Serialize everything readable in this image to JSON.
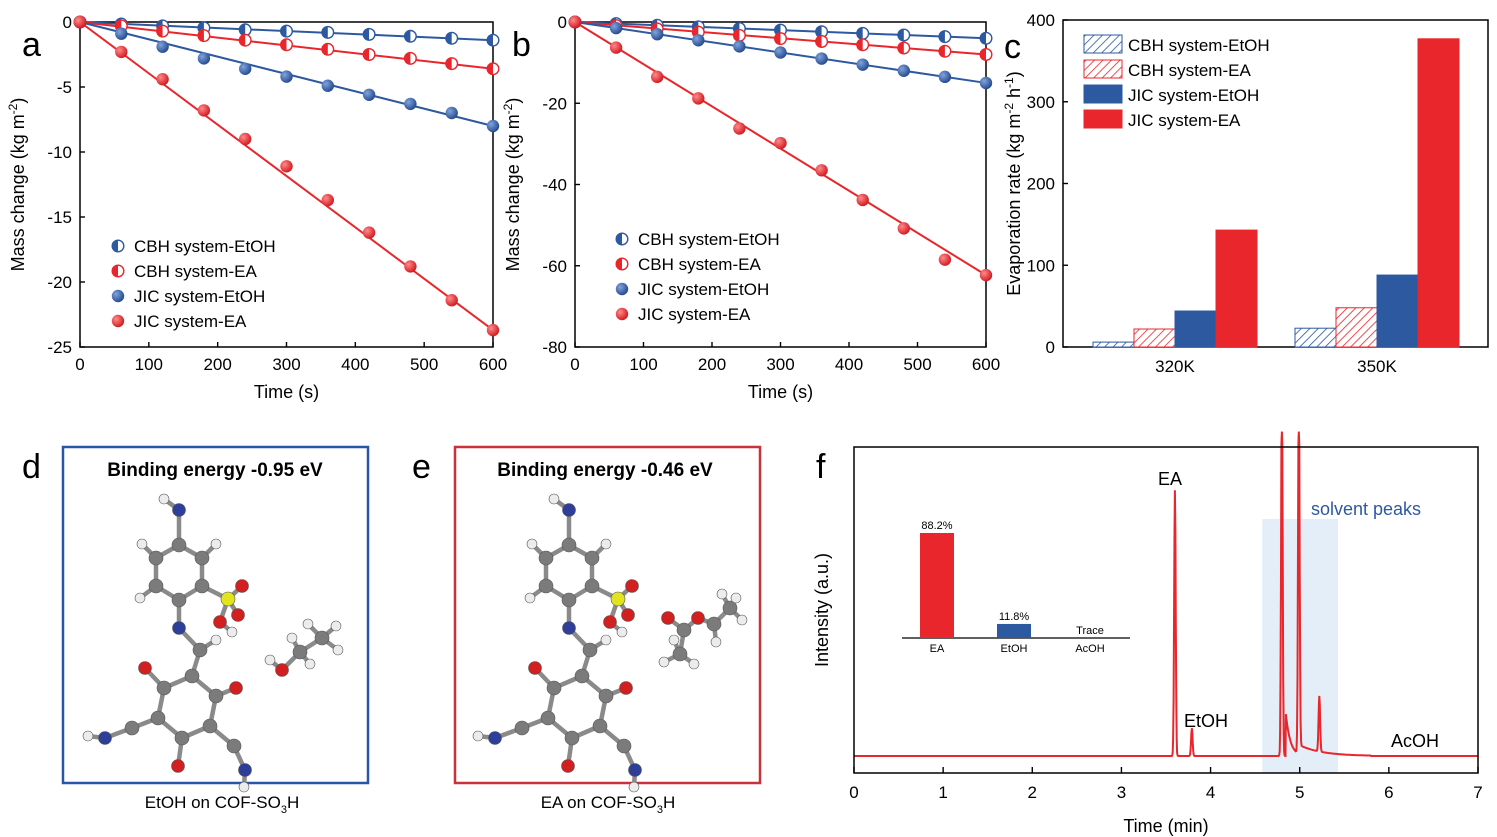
{
  "colors": {
    "red": "#e8262b",
    "blue": "#2d59a0",
    "blue_box": "#2b55a6",
    "red_box": "#c8323a",
    "shade": "#e3eef9",
    "atom_c": "#7b7b7b",
    "atom_h": "#ececec",
    "atom_n": "#2e3f9a",
    "atom_o": "#d21f1f",
    "atom_s": "#e3e31f"
  },
  "panels": {
    "a": {
      "letter": "a"
    },
    "b": {
      "letter": "b"
    },
    "c": {
      "letter": "c"
    },
    "d": {
      "letter": "d",
      "binding_label": "Binding energy",
      "binding_value": "-0.95 eV",
      "caption_main": "EtOH on COF-SO",
      "caption_sub": "3",
      "caption_end": "H"
    },
    "e": {
      "letter": "e",
      "binding_label": "Binding energy",
      "binding_value": "-0.46 eV",
      "caption_main": "EA on COF-SO",
      "caption_sub": "3",
      "caption_end": "H"
    },
    "f": {
      "letter": "f"
    }
  },
  "chart_data": [
    {
      "id": "a",
      "type": "scatter",
      "xlabel": "Time (s)",
      "ylabel": "Mass change (kg m",
      "ylabel_sup": "-2",
      "ylabel_end": ")",
      "xlim": [
        0,
        600
      ],
      "ylim": [
        -25,
        0
      ],
      "xticks": [
        0,
        100,
        200,
        300,
        400,
        500,
        600
      ],
      "yticks": [
        0,
        -5,
        -10,
        -15,
        -20,
        -25
      ],
      "x": [
        0,
        60,
        120,
        180,
        240,
        300,
        360,
        420,
        480,
        540,
        600
      ],
      "series": [
        {
          "name": "CBH system-EtOH",
          "color": "blue",
          "marker": "half",
          "values": [
            0,
            -0.15,
            -0.3,
            -0.45,
            -0.6,
            -0.7,
            -0.8,
            -0.95,
            -1.1,
            -1.25,
            -1.4
          ],
          "fit_end": -1.4
        },
        {
          "name": "CBH system-EA",
          "color": "red",
          "marker": "half",
          "values": [
            0,
            -0.3,
            -0.7,
            -1.05,
            -1.4,
            -1.75,
            -2.1,
            -2.5,
            -2.8,
            -3.2,
            -3.6
          ],
          "fit_end": -3.6
        },
        {
          "name": "JIC system-EtOH",
          "color": "blue",
          "marker": "full",
          "values": [
            0,
            -0.9,
            -1.9,
            -2.8,
            -3.6,
            -4.2,
            -4.9,
            -5.6,
            -6.3,
            -7.0,
            -8.0
          ],
          "fit_end": -8.0
        },
        {
          "name": "JIC system-EA",
          "color": "red",
          "marker": "full",
          "values": [
            0,
            -2.3,
            -4.4,
            -6.8,
            -9.0,
            -11.1,
            -13.7,
            -16.2,
            -18.8,
            -21.4,
            -23.7
          ],
          "fit_end": -23.7
        }
      ]
    },
    {
      "id": "b",
      "type": "scatter",
      "xlabel": "Time (s)",
      "ylabel": "Mass change (kg m",
      "ylabel_sup": "-2",
      "ylabel_end": ")",
      "xlim": [
        0,
        600
      ],
      "ylim": [
        -80,
        0
      ],
      "xticks": [
        0,
        100,
        200,
        300,
        400,
        500,
        600
      ],
      "yticks": [
        0,
        -20,
        -40,
        -60,
        -80
      ],
      "x": [
        0,
        60,
        120,
        180,
        240,
        300,
        360,
        420,
        480,
        540,
        600
      ],
      "series": [
        {
          "name": "CBH system-EtOH",
          "color": "blue",
          "marker": "half",
          "values": [
            0,
            -0.4,
            -0.8,
            -1.2,
            -1.6,
            -2.0,
            -2.4,
            -2.8,
            -3.2,
            -3.6,
            -4.0
          ],
          "fit_end": -4.0
        },
        {
          "name": "CBH system-EA",
          "color": "red",
          "marker": "half",
          "values": [
            0,
            -0.9,
            -1.7,
            -2.5,
            -3.3,
            -4.1,
            -4.8,
            -5.6,
            -6.4,
            -7.2,
            -8.0
          ],
          "fit_end": -8.0
        },
        {
          "name": "JIC system-EtOH",
          "color": "blue",
          "marker": "full",
          "values": [
            0,
            -1.5,
            -3.0,
            -4.5,
            -6.0,
            -7.5,
            -9.0,
            -10.5,
            -12.0,
            -13.5,
            -15.0
          ],
          "fit_end": -15.0
        },
        {
          "name": "JIC system-EA",
          "color": "red",
          "marker": "full",
          "values": [
            0,
            -6.3,
            -13.5,
            -18.8,
            -26.2,
            -29.8,
            -36.5,
            -43.8,
            -50.8,
            -58.5,
            -62.3
          ],
          "fit_end": -62.3
        }
      ]
    },
    {
      "id": "c",
      "type": "bar",
      "ylabel": "Evaporation rate (kg m",
      "ylabel_sup1": "-2",
      "ylabel_mid": " h",
      "ylabel_sup2": "-1",
      "ylabel_end": ")",
      "ylim": [
        0,
        400
      ],
      "yticks": [
        0,
        100,
        200,
        300,
        400
      ],
      "categories": [
        "320K",
        "350K"
      ],
      "series": [
        {
          "name": "CBH system-EtOH",
          "color": "blue",
          "pattern": "hatch",
          "values": [
            6,
            23
          ]
        },
        {
          "name": "CBH system-EA",
          "color": "red",
          "pattern": "hatch",
          "values": [
            22,
            48
          ]
        },
        {
          "name": "JIC system-EtOH",
          "color": "blue",
          "pattern": "solid",
          "values": [
            44,
            88
          ]
        },
        {
          "name": "JIC system-EA",
          "color": "red",
          "pattern": "solid",
          "values": [
            143,
            377
          ]
        }
      ]
    },
    {
      "id": "f",
      "type": "line",
      "xlabel": "Time (min)",
      "ylabel": "Intensity (a.u.)",
      "xlim": [
        0,
        7
      ],
      "xticks": [
        0,
        1,
        2,
        3,
        4,
        5,
        6,
        7
      ],
      "annotations": {
        "ea": "EA",
        "etoh": "EtOH",
        "acoh": "AcOH",
        "solvent": "solvent peaks"
      },
      "solvent_region": [
        4.58,
        5.43
      ],
      "peaks": [
        {
          "label": "EA",
          "t": 3.6,
          "height": 0.86
        },
        {
          "label": "EtOH",
          "t": 3.79,
          "height": 0.09
        },
        {
          "label": "solvent",
          "t": 4.8,
          "height": 1.2
        },
        {
          "label": "solvent",
          "t": 4.99,
          "height": 1.2
        },
        {
          "label": "minor",
          "t": 5.22,
          "height": 0.18
        }
      ],
      "inset": {
        "type": "bar",
        "categories": [
          "EA",
          "EtOH",
          "AcOH"
        ],
        "values": [
          88.2,
          11.8,
          0
        ],
        "labels": [
          "88.2%",
          "11.8%",
          "Trace"
        ]
      }
    }
  ]
}
